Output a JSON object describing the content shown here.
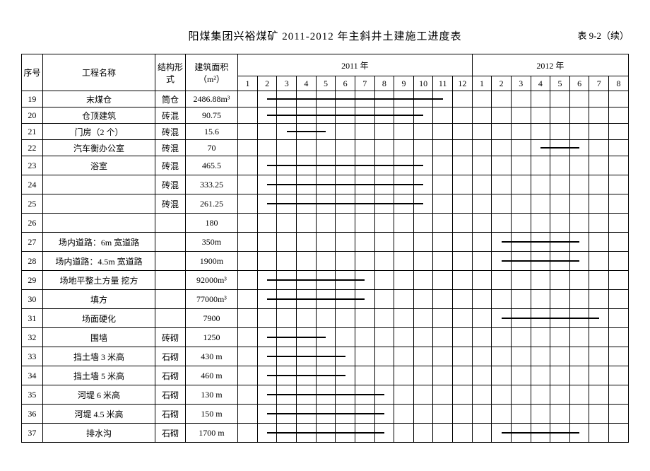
{
  "title": "阳煤集团兴裕煤矿 2011-2012 年主斜井土建施工进度表",
  "table_label": "表 9-2（续）",
  "headers": {
    "seq": "序号",
    "name": "工程名称",
    "struct": "结构形式",
    "area": "建筑面积（m²）",
    "year2011": "2011 年",
    "year2012": "2012 年"
  },
  "months_2011": [
    "1",
    "2",
    "3",
    "4",
    "5",
    "6",
    "7",
    "8",
    "9",
    "10",
    "11",
    "12"
  ],
  "months_2012": [
    "1",
    "2",
    "3",
    "4",
    "5",
    "6",
    "7",
    "8"
  ],
  "month_count": 20,
  "rows": [
    {
      "seq": "19",
      "name": "末煤仓",
      "struct": "筒仓",
      "area": "2486.88m³",
      "bars": [
        {
          "start": 2,
          "end": 11
        }
      ]
    },
    {
      "seq": "20",
      "name": "仓顶建筑",
      "struct": "砖混",
      "area": "90.75",
      "bars": [
        {
          "start": 2,
          "end": 10
        }
      ]
    },
    {
      "seq": "21",
      "name": "门房（2 个）",
      "struct": "砖混",
      "area": "15.6",
      "bars": [
        {
          "start": 3,
          "end": 5
        }
      ]
    },
    {
      "seq": "22",
      "name": "汽车衡办公室",
      "struct": "砖混",
      "area": "70",
      "bars": [
        {
          "start": 16,
          "end": 18
        }
      ]
    },
    {
      "seq": "23",
      "name": "浴室",
      "struct": "砖混",
      "area": "465.5",
      "bars": [
        {
          "start": 2,
          "end": 10
        }
      ],
      "tall": true
    },
    {
      "seq": "24",
      "name": "",
      "struct": "砖混",
      "area": "333.25",
      "bars": [
        {
          "start": 2,
          "end": 10
        }
      ],
      "tall": true
    },
    {
      "seq": "25",
      "name": "",
      "struct": "砖混",
      "area": "261.25",
      "bars": [
        {
          "start": 2,
          "end": 10
        }
      ],
      "tall": true
    },
    {
      "seq": "26",
      "name": "",
      "struct": "",
      "area": "180",
      "bars": [],
      "tall": true
    },
    {
      "seq": "27",
      "name": "场内道路：6m 宽道路",
      "struct": "",
      "area": "350m",
      "bars": [
        {
          "start": 14,
          "end": 18
        }
      ],
      "tall": true
    },
    {
      "seq": "28",
      "name": "场内道路：4.5m 宽道路",
      "struct": "",
      "area": "1900m",
      "bars": [
        {
          "start": 14,
          "end": 18
        }
      ],
      "tall": true
    },
    {
      "seq": "29",
      "name": "场地平整土方量  挖方",
      "struct": "",
      "area": "92000m³",
      "bars": [
        {
          "start": 2,
          "end": 7
        }
      ],
      "tall": true
    },
    {
      "seq": "30",
      "name": "填方",
      "struct": "",
      "area": "77000m³",
      "bars": [
        {
          "start": 2,
          "end": 7
        }
      ],
      "tall": true
    },
    {
      "seq": "31",
      "name": "场面硬化",
      "struct": "",
      "area": "7900",
      "bars": [
        {
          "start": 14,
          "end": 19
        }
      ],
      "tall": true
    },
    {
      "seq": "32",
      "name": "围墙",
      "struct": "砖砌",
      "area": "1250",
      "bars": [
        {
          "start": 2,
          "end": 5
        }
      ],
      "tall": true
    },
    {
      "seq": "33",
      "name": "挡土墙 3 米高",
      "struct": "石砌",
      "area": "430 m",
      "bars": [
        {
          "start": 2,
          "end": 6
        }
      ],
      "tall": true
    },
    {
      "seq": "34",
      "name": "挡土墙 5 米高",
      "struct": "石砌",
      "area": "460 m",
      "bars": [
        {
          "start": 2,
          "end": 6
        }
      ],
      "tall": true
    },
    {
      "seq": "35",
      "name": "河堤 6 米高",
      "struct": "石砌",
      "area": "130 m",
      "bars": [
        {
          "start": 2,
          "end": 8
        }
      ],
      "tall": true
    },
    {
      "seq": "36",
      "name": "河堤 4.5 米高",
      "struct": "石砌",
      "area": "150 m",
      "bars": [
        {
          "start": 2,
          "end": 8
        }
      ],
      "tall": true
    },
    {
      "seq": "37",
      "name": "排水沟",
      "struct": "石砌",
      "area": "1700 m",
      "bars": [
        {
          "start": 2,
          "end": 8
        },
        {
          "start": 14,
          "end": 18
        }
      ],
      "tall": true
    }
  ]
}
